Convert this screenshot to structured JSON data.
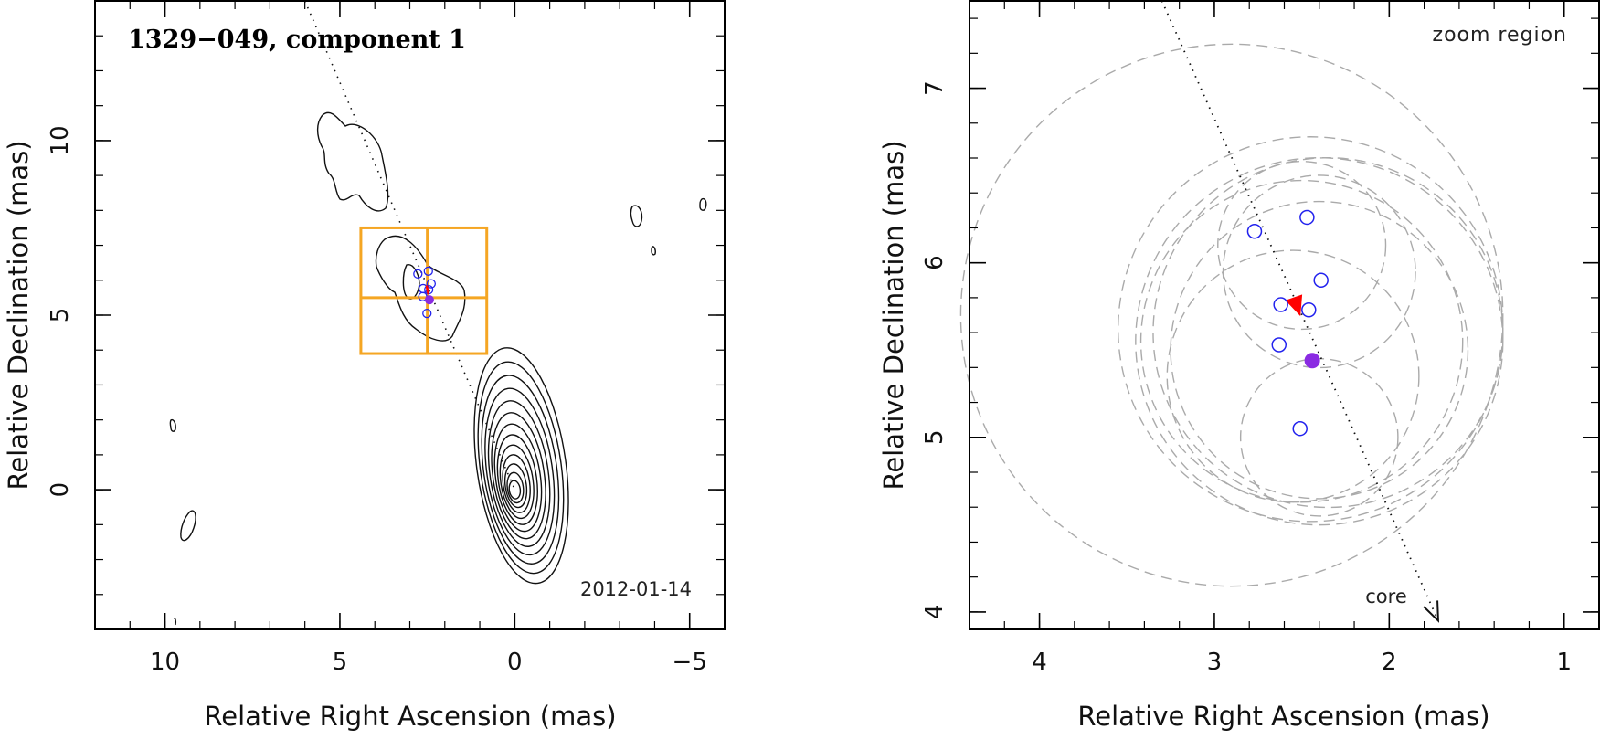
{
  "colors": {
    "box": "#f5a623",
    "marker": "#2222ee",
    "filled": "#8a2be2",
    "arrow": "#ff0000",
    "circles": "#aaaaaa",
    "contour": "#111111"
  },
  "chart_data": [
    {
      "type": "contour",
      "title": "1329−049, component 1",
      "date_label": "2012-01-14",
      "xlabel": "Relative Right Ascension (mas)",
      "ylabel": "Relative Declination (mas)",
      "xlim": [
        12.0,
        -6.0
      ],
      "ylim": [
        -4.0,
        14.0
      ],
      "xticks": [
        10,
        5,
        0,
        -5
      ],
      "xtick_labels": [
        "10",
        "5",
        "0",
        "−5"
      ],
      "yticks": [
        0,
        5,
        10
      ],
      "ytick_labels": [
        "0",
        "5",
        "10"
      ],
      "core": {
        "x": 0.0,
        "y": 0.0
      },
      "jet_line": {
        "from": [
          6.0,
          14.0
        ],
        "to": [
          0.0,
          0.0
        ]
      },
      "zoom_box": {
        "x_range": [
          4.4,
          0.8
        ],
        "y_range": [
          3.9,
          7.5
        ],
        "cross": [
          2.5,
          5.5
        ]
      },
      "open_markers": [
        {
          "x": 2.77,
          "y": 6.18
        },
        {
          "x": 2.47,
          "y": 6.26
        },
        {
          "x": 2.39,
          "y": 5.9
        },
        {
          "x": 2.62,
          "y": 5.76
        },
        {
          "x": 2.46,
          "y": 5.73
        },
        {
          "x": 2.63,
          "y": 5.53
        },
        {
          "x": 2.51,
          "y": 5.05
        }
      ],
      "filled_marker": {
        "x": 2.44,
        "y": 5.44
      }
    },
    {
      "type": "scatter",
      "title": "zoom region",
      "xlabel": "Relative Right Ascension (mas)",
      "ylabel": "Relative Declination (mas)",
      "xlim": [
        4.4,
        0.8
      ],
      "ylim": [
        3.9,
        7.5
      ],
      "xticks": [
        4,
        3,
        2,
        1
      ],
      "xtick_labels": [
        "4",
        "3",
        "2",
        "1"
      ],
      "yticks": [
        4,
        5,
        6,
        7
      ],
      "ytick_labels": [
        "4",
        "5",
        "6",
        "7"
      ],
      "open_markers": [
        {
          "x": 2.77,
          "y": 6.18
        },
        {
          "x": 2.47,
          "y": 6.26
        },
        {
          "x": 2.39,
          "y": 5.9
        },
        {
          "x": 2.62,
          "y": 5.76
        },
        {
          "x": 2.46,
          "y": 5.73
        },
        {
          "x": 2.63,
          "y": 5.53
        },
        {
          "x": 2.51,
          "y": 5.05
        }
      ],
      "filled_marker": {
        "x": 2.44,
        "y": 5.44
      },
      "mean_direction_arrow": {
        "from": [
          2.58,
          5.9
        ],
        "to": [
          2.51,
          5.7
        ]
      },
      "core_arrow": {
        "from": [
          3.3,
          7.5
        ],
        "to": [
          1.72,
          3.95
        ],
        "label": "core"
      },
      "uncertainty_circles": [
        {
          "x": 2.9,
          "y": 5.7,
          "r": 1.55
        },
        {
          "x": 2.45,
          "y": 5.62,
          "r": 1.1
        },
        {
          "x": 2.4,
          "y": 5.55,
          "r": 1.05
        },
        {
          "x": 2.5,
          "y": 5.55,
          "r": 0.92
        },
        {
          "x": 2.35,
          "y": 5.6,
          "r": 1.0
        },
        {
          "x": 2.4,
          "y": 5.5,
          "r": 0.85
        },
        {
          "x": 2.55,
          "y": 5.35,
          "r": 0.72
        },
        {
          "x": 2.5,
          "y": 6.1,
          "r": 0.48
        },
        {
          "x": 2.4,
          "y": 5.0,
          "r": 0.45
        },
        {
          "x": 2.4,
          "y": 5.95,
          "r": 0.55
        }
      ]
    }
  ]
}
